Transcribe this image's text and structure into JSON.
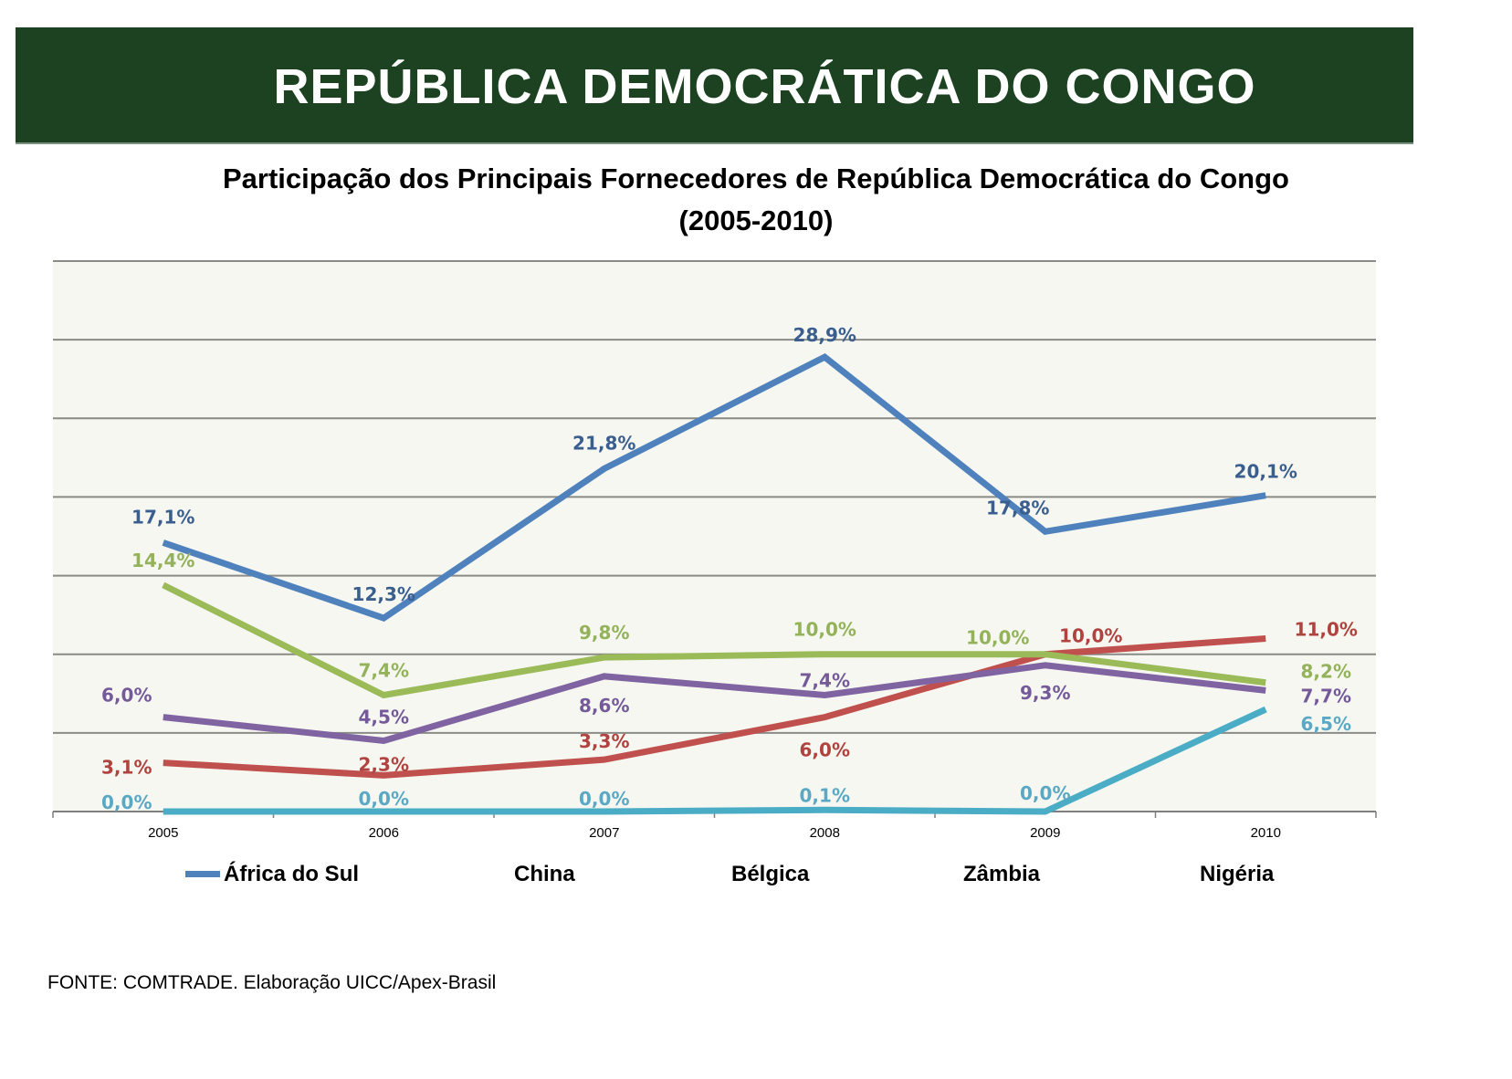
{
  "banner": {
    "title": "REPÚBLICA DEMOCRÁTICA DO CONGO",
    "background": "#1C4222"
  },
  "footnote": "FONTE: COMTRADE. Elaboração UICC/Apex-Brasil",
  "chart_data": {
    "type": "line",
    "title": "Participação dos Principais Fornecedores de República Democrática do Congo",
    "subtitle": "(2005-2010)",
    "xlabel": "",
    "ylabel": "",
    "categories": [
      "2005",
      "2006",
      "2007",
      "2008",
      "2009",
      "2010"
    ],
    "ylim": [
      0,
      35
    ],
    "y_gridlines": [
      5,
      10,
      15,
      20,
      25,
      30,
      35
    ],
    "y_tick_labels_visible": false,
    "grid": true,
    "legend": "bottom",
    "value_format": "percent-comma-1-decimal",
    "series": [
      {
        "name": "África do Sul",
        "color": "#4F81BD",
        "label_color": "#3A5F8F",
        "values": [
          17.1,
          12.3,
          21.8,
          28.9,
          17.8,
          20.1
        ],
        "labels": [
          "17,1%",
          "12,3%",
          "21,8%",
          "28,9%",
          "17,8%",
          "20,1%"
        ]
      },
      {
        "name": "China",
        "color": "#C0504D",
        "label_color": "#B0433F",
        "values": [
          3.1,
          2.3,
          3.3,
          6.0,
          10.0,
          11.0
        ],
        "labels": [
          "3,1%",
          "2,3%",
          "3,3%",
          "6,0%",
          "10,0%",
          "11,0%"
        ]
      },
      {
        "name": "Bélgica",
        "color": "#9BBB59",
        "label_color": "#93B25A",
        "values": [
          14.4,
          7.4,
          9.8,
          10.0,
          10.0,
          8.2
        ],
        "labels": [
          "14,4%",
          "7,4%",
          "9,8%",
          "10,0%",
          "10,0%",
          "8,2%"
        ]
      },
      {
        "name": "Zâmbia",
        "color": "#8064A2",
        "label_color": "#745A99",
        "values": [
          6.0,
          4.5,
          8.6,
          7.4,
          9.3,
          7.7
        ],
        "labels": [
          "6,0%",
          "4,5%",
          "8,6%",
          "7,4%",
          "9,3%",
          "7,7%"
        ]
      },
      {
        "name": "Nigéria",
        "color": "#4BACC6",
        "label_color": "#5AA8C4",
        "values": [
          0.0,
          0.0,
          0.0,
          0.1,
          0.0,
          6.5
        ],
        "labels": [
          "0,0%",
          "0,0%",
          "0,0%",
          "0,1%",
          "0,0%",
          "6,5%"
        ]
      }
    ],
    "legend_entries": [
      {
        "label": "África do Sul",
        "swatch_visible": true
      },
      {
        "label": "China",
        "swatch_visible": false
      },
      {
        "label": "Bélgica",
        "swatch_visible": false
      },
      {
        "label": "Zâmbia",
        "swatch_visible": false
      },
      {
        "label": "Nigéria",
        "swatch_visible": false
      }
    ]
  }
}
